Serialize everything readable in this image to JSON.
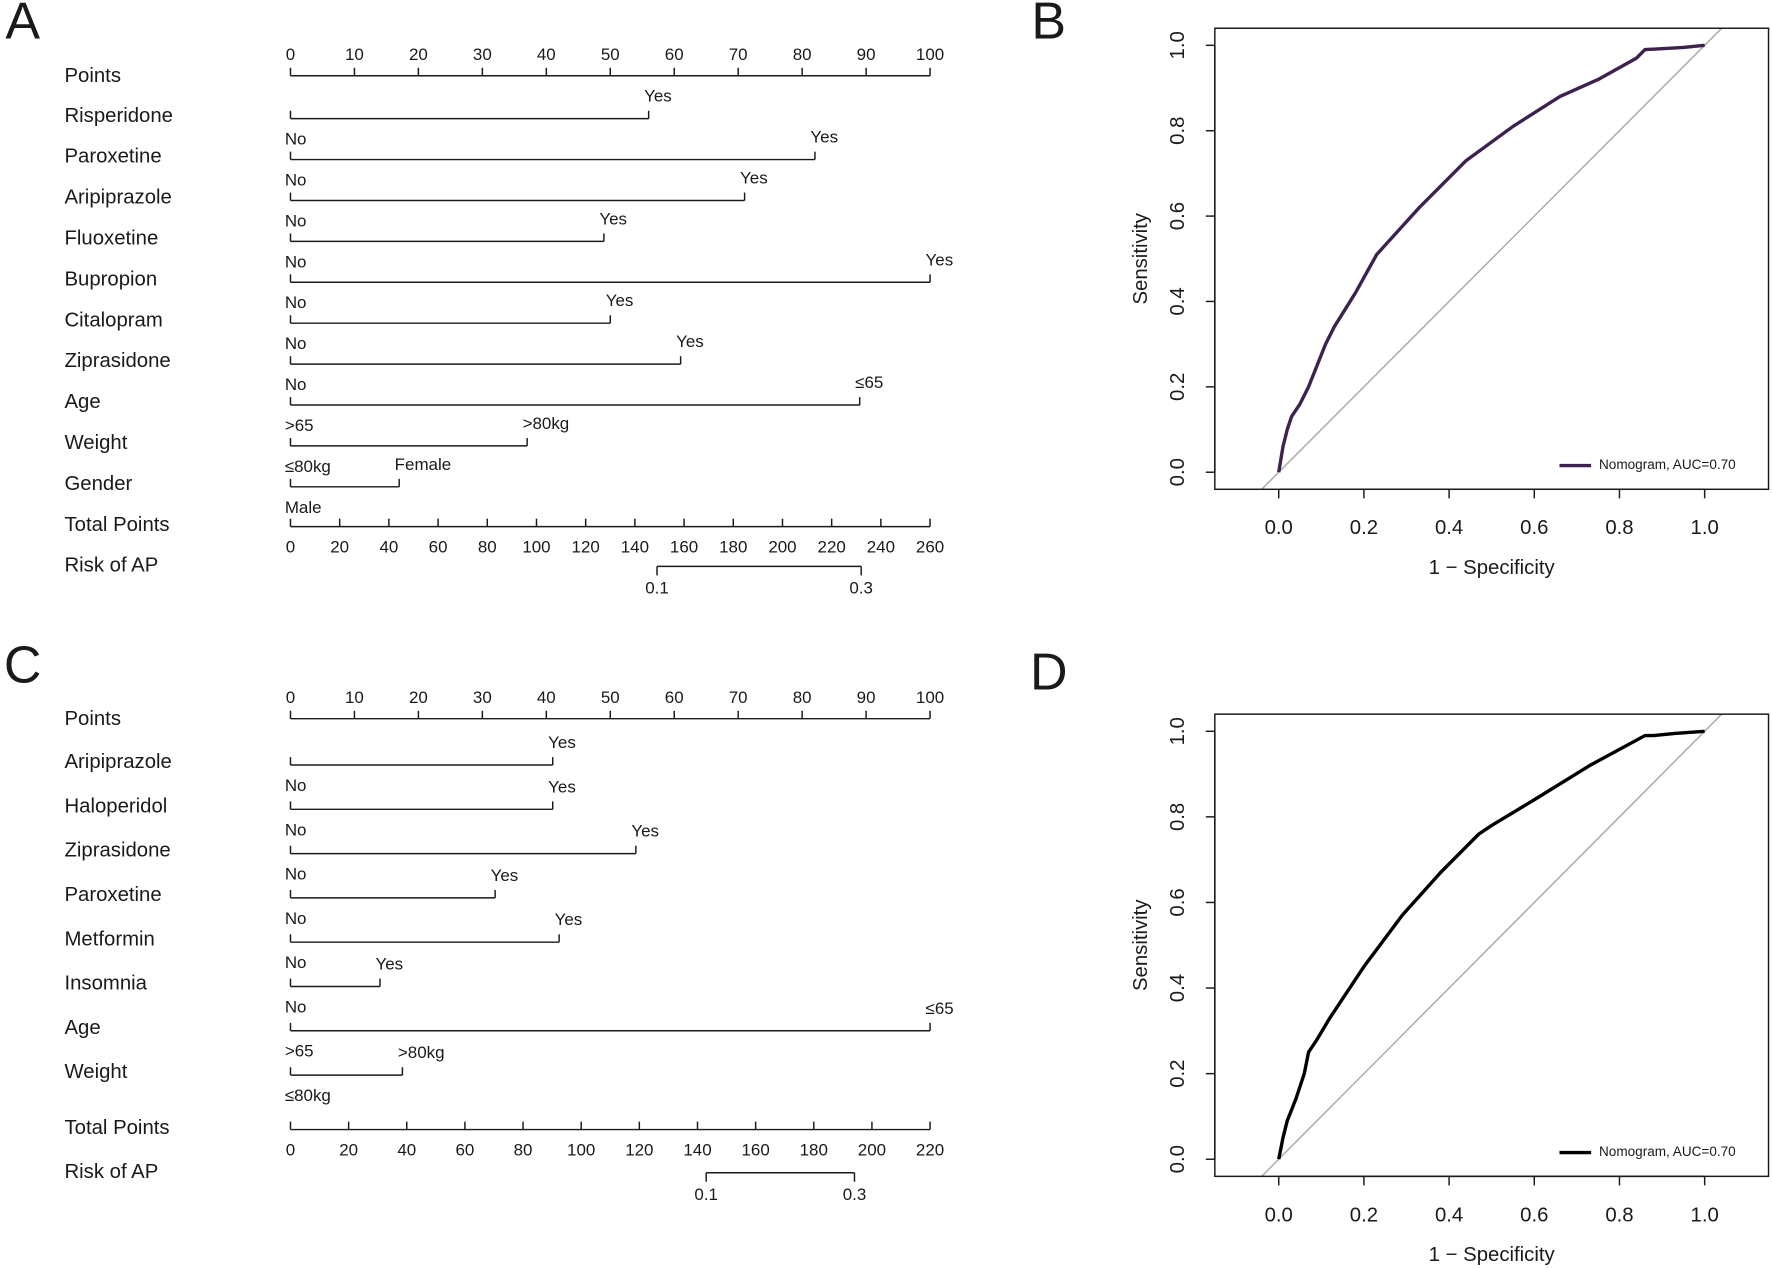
{
  "chart_data": [
    {
      "type": "nomogram",
      "panel": "A",
      "points_label": "Points",
      "xlim": [
        0,
        100
      ],
      "xticks": [
        0,
        10,
        20,
        30,
        40,
        50,
        60,
        70,
        80,
        90,
        100
      ],
      "variables": [
        {
          "name": "Risperidone",
          "levels": [
            "No",
            "Yes"
          ],
          "points": [
            0,
            56
          ]
        },
        {
          "name": "Paroxetine",
          "levels": [
            "No",
            "Yes"
          ],
          "points": [
            0,
            82
          ]
        },
        {
          "name": "Aripiprazole",
          "levels": [
            "No",
            "Yes"
          ],
          "points": [
            0,
            71
          ]
        },
        {
          "name": "Fluoxetine",
          "levels": [
            "No",
            "Yes"
          ],
          "points": [
            0,
            49
          ]
        },
        {
          "name": "Bupropion",
          "levels": [
            "No",
            "Yes"
          ],
          "points": [
            0,
            100
          ]
        },
        {
          "name": "Citalopram",
          "levels": [
            "No",
            "Yes"
          ],
          "points": [
            0,
            50
          ]
        },
        {
          "name": "Ziprasidone",
          "levels": [
            "No",
            "Yes"
          ],
          "points": [
            0,
            61
          ]
        },
        {
          "name": "Age",
          "levels": [
            ">65",
            "≤65"
          ],
          "points": [
            0,
            89
          ]
        },
        {
          "name": "Weight",
          "levels": [
            "≤80kg",
            ">80kg"
          ],
          "points": [
            0,
            37
          ]
        },
        {
          "name": "Gender",
          "levels": [
            "Male",
            "Female"
          ],
          "points": [
            0,
            17
          ]
        }
      ],
      "total_label": "Total Points",
      "total_lim": [
        0,
        260
      ],
      "total_ticks": [
        0,
        20,
        40,
        60,
        80,
        100,
        120,
        140,
        160,
        180,
        200,
        220,
        240,
        260
      ],
      "risk_label": "Risk of AP",
      "risk_ticks": [
        0.1,
        0.3
      ],
      "risk_points": [
        149,
        232
      ]
    },
    {
      "type": "line",
      "panel": "B",
      "x_label": "1 − Specificity",
      "y_label": "Sensitivity",
      "xlim": [
        -0.15,
        1.15
      ],
      "ylim": [
        -0.04,
        1.04
      ],
      "xticks": [
        {
          "value": 0,
          "label": "0.0"
        },
        0.2,
        0.4,
        0.6,
        0.8,
        {
          "value": 1,
          "label": "1.0"
        }
      ],
      "yticks": [
        {
          "value": 0,
          "label": "0.0"
        },
        0.2,
        0.4,
        0.6,
        0.8,
        {
          "value": 1,
          "label": "1.0"
        }
      ],
      "legend": "bottomright",
      "series": [
        {
          "name": "Nomogram, AUC=0.70",
          "color": "#3b2250",
          "x": [
            0,
            0.01,
            0.02,
            0.03,
            0.05,
            0.07,
            0.09,
            0.11,
            0.13,
            0.18,
            0.23,
            0.33,
            0.44,
            0.55,
            0.66,
            0.75,
            0.84,
            0.86,
            0.95,
            1
          ],
          "values": [
            0,
            0.06,
            0.1,
            0.13,
            0.16,
            0.2,
            0.25,
            0.3,
            0.34,
            0.42,
            0.51,
            0.62,
            0.73,
            0.81,
            0.88,
            0.92,
            0.97,
            0.99,
            0.995,
            1
          ]
        }
      ]
    },
    {
      "type": "nomogram",
      "panel": "C",
      "points_label": "Points",
      "xlim": [
        0,
        100
      ],
      "xticks": [
        0,
        10,
        20,
        30,
        40,
        50,
        60,
        70,
        80,
        90,
        100
      ],
      "variables": [
        {
          "name": "Aripiprazole",
          "levels": [
            "No",
            "Yes"
          ],
          "points": [
            0,
            41
          ]
        },
        {
          "name": "Haloperidol",
          "levels": [
            "No",
            "Yes"
          ],
          "points": [
            0,
            41
          ]
        },
        {
          "name": "Ziprasidone",
          "levels": [
            "No",
            "Yes"
          ],
          "points": [
            0,
            54
          ]
        },
        {
          "name": "Paroxetine",
          "levels": [
            "No",
            "Yes"
          ],
          "points": [
            0,
            32
          ]
        },
        {
          "name": "Metformin",
          "levels": [
            "No",
            "Yes"
          ],
          "points": [
            0,
            42
          ]
        },
        {
          "name": "Insomnia",
          "levels": [
            "No",
            "Yes"
          ],
          "points": [
            0,
            14
          ]
        },
        {
          "name": "Age",
          "levels": [
            ">65",
            "≤65"
          ],
          "points": [
            0,
            100
          ]
        },
        {
          "name": "Weight",
          "levels": [
            "≤80kg",
            ">80kg"
          ],
          "points": [
            0,
            17.5
          ]
        }
      ],
      "total_label": "Total Points",
      "total_lim": [
        0,
        220
      ],
      "total_ticks": [
        0,
        20,
        40,
        60,
        80,
        100,
        120,
        140,
        160,
        180,
        200,
        220
      ],
      "risk_label": "Risk of AP",
      "risk_ticks": [
        0.1,
        0.3
      ],
      "risk_points": [
        143,
        194
      ]
    },
    {
      "type": "line",
      "panel": "D",
      "x_label": "1 − Specificity",
      "y_label": "Sensitivity",
      "xlim": [
        -0.15,
        1.15
      ],
      "ylim": [
        -0.04,
        1.04
      ],
      "xticks": [
        {
          "value": 0,
          "label": "0.0"
        },
        0.2,
        0.4,
        0.6,
        0.8,
        {
          "value": 1,
          "label": "1.0"
        }
      ],
      "yticks": [
        {
          "value": 0,
          "label": "0.0"
        },
        0.2,
        0.4,
        0.6,
        0.8,
        {
          "value": 1,
          "label": "1.0"
        }
      ],
      "legend": "bottomright",
      "series": [
        {
          "name": "Nomogram, AUC=0.70",
          "color": "#000000",
          "x": [
            0,
            0.01,
            0.02,
            0.04,
            0.06,
            0.07,
            0.09,
            0.12,
            0.2,
            0.29,
            0.38,
            0.47,
            0.5,
            0.6,
            0.73,
            0.86,
            0.88,
            0.93,
            1
          ],
          "values": [
            0,
            0.05,
            0.09,
            0.14,
            0.2,
            0.25,
            0.28,
            0.33,
            0.45,
            0.57,
            0.67,
            0.76,
            0.78,
            0.84,
            0.92,
            0.99,
            0.99,
            0.995,
            1
          ]
        }
      ]
    }
  ]
}
